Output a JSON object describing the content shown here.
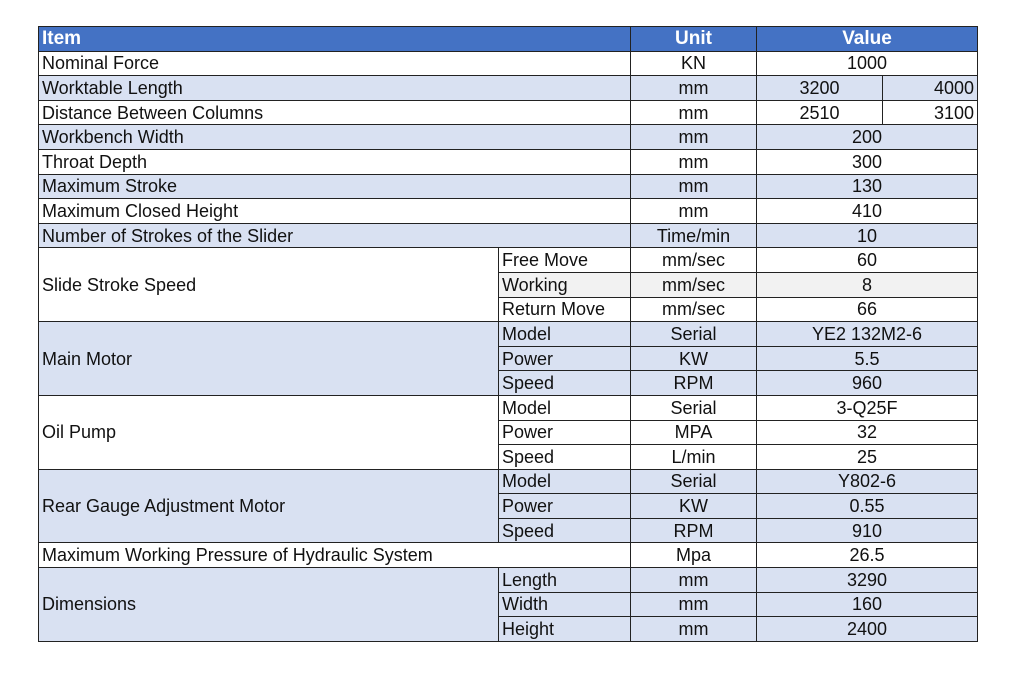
{
  "header": {
    "item": "Item",
    "unit": "Unit",
    "value": "Value",
    "color": "#4472c4"
  },
  "rows": [
    {
      "item": "Nominal Force",
      "unit": "KN",
      "value": "1000"
    },
    {
      "item": "Worktable Length",
      "unit": "mm",
      "values": [
        "3200",
        "4000"
      ]
    },
    {
      "item": "Distance Between Columns",
      "unit": "mm",
      "values": [
        "2510",
        "3100"
      ]
    },
    {
      "item": "Workbench Width",
      "unit": "mm",
      "value": "200"
    },
    {
      "item": "Throat Depth",
      "unit": "mm",
      "value": "300"
    },
    {
      "item": "Maximum Stroke",
      "unit": "mm",
      "value": "130"
    },
    {
      "item": "Maximum Closed Height",
      "unit": "mm",
      "value": "410"
    },
    {
      "item": "Number of Strokes of the Slider",
      "unit": "Time/min",
      "value": "10"
    },
    {
      "item": "Slide Stroke Speed",
      "subs": [
        {
          "label": "Free Move",
          "unit": "mm/sec",
          "value": "60"
        },
        {
          "label": "Working",
          "unit": "mm/sec",
          "value": "8"
        },
        {
          "label": "Return Move",
          "unit": "mm/sec",
          "value": "66"
        }
      ]
    },
    {
      "item": "Main Motor",
      "subs": [
        {
          "label": "Model",
          "unit": "Serial",
          "value": "YE2 132M2-6"
        },
        {
          "label": "Power",
          "unit": "KW",
          "value": "5.5"
        },
        {
          "label": "Speed",
          "unit": "RPM",
          "value": "960"
        }
      ]
    },
    {
      "item": "Oil Pump",
      "subs": [
        {
          "label": "Model",
          "unit": "Serial",
          "value": "3-Q25F"
        },
        {
          "label": "Power",
          "unit": "MPA",
          "value": "32"
        },
        {
          "label": "Speed",
          "unit": "L/min",
          "value": "25"
        }
      ]
    },
    {
      "item": "Rear Gauge Adjustment Motor",
      "subs": [
        {
          "label": "Model",
          "unit": "Serial",
          "value": "Y802-6"
        },
        {
          "label": "Power",
          "unit": "KW",
          "value": "0.55"
        },
        {
          "label": "Speed",
          "unit": "RPM",
          "value": "910"
        }
      ]
    },
    {
      "item": "Maximum Working Pressure of Hydraulic System",
      "unit": "Mpa",
      "value": "26.5"
    },
    {
      "item": "Dimensions",
      "subs": [
        {
          "label": "Length",
          "unit": "mm",
          "value": "3290"
        },
        {
          "label": "Width",
          "unit": "mm",
          "value": "160"
        },
        {
          "label": "Height",
          "unit": "mm",
          "value": "2400"
        }
      ]
    }
  ]
}
